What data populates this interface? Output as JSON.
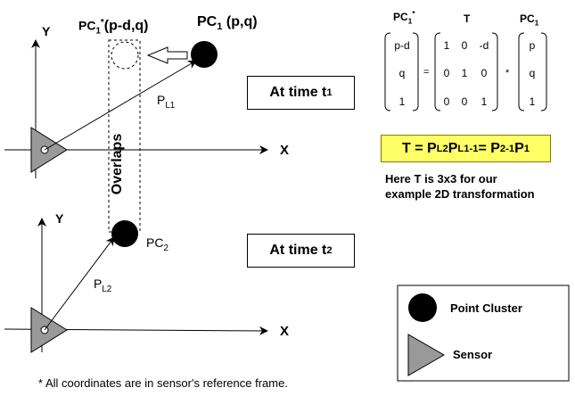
{
  "labels": {
    "y_axis_top": "Y",
    "x_axis_top": "X",
    "y_axis_bottom": "Y",
    "x_axis_bottom": "X",
    "pc1_star": "PC",
    "pc1_star_sub": "1",
    "pc1_star_sup": "*",
    "pc1_star_coords": "(p-d,q)",
    "pc1": "PC",
    "pc1_sub": "1",
    "pc1_coords": " (p,q)",
    "pl1": "P",
    "pl1_sub": "L1",
    "pl2": "P",
    "pl2_sub": "L2",
    "pc2": "PC",
    "pc2_sub": "2",
    "overlaps": "Overlaps"
  },
  "time_boxes": {
    "t1_text": "At time t",
    "t1_sub": "1",
    "t2_text": "At time t",
    "t2_sub": "2"
  },
  "matrix": {
    "header_left": "PC",
    "header_left_sub": "1",
    "header_left_sup": "*",
    "header_mid": "T",
    "header_right": "PC",
    "header_right_sub": "1",
    "left": [
      "p-d",
      "q",
      "1"
    ],
    "mid": [
      [
        "1",
        "0",
        "-d"
      ],
      [
        "0",
        "1",
        "0"
      ],
      [
        "0",
        "0",
        "1"
      ]
    ],
    "right": [
      "p",
      "q",
      "1"
    ],
    "equals": "=",
    "times": "*"
  },
  "formula": {
    "t": "T = P",
    "pl2": "L2",
    "p": "P",
    "pl1": "L1",
    "inv1": "-1",
    "eq": " = P",
    "p2": "2",
    "inv2": "-1",
    "p3": "P",
    "p1": "1"
  },
  "note": {
    "line1": "Here T is 3x3 for our",
    "line2": "example 2D transformation"
  },
  "legend": {
    "point_cluster": "Point Cluster",
    "sensor": "Sensor"
  },
  "footnote": "* All coordinates are in sensor's reference frame.",
  "colors": {
    "sensor_fill": "#999999",
    "formula_fill": "#ffff66",
    "point": "#000000"
  }
}
